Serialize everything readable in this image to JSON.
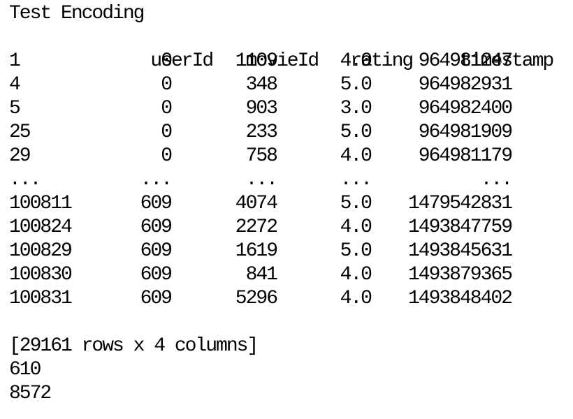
{
  "title": "Test Encoding",
  "table": {
    "columns": [
      "userId",
      "movieId",
      "rating",
      "timestamp"
    ],
    "rows": [
      {
        "index": "1",
        "userId": "0",
        "movieId": "1109",
        "rating": "4.0",
        "timestamp": "964981247"
      },
      {
        "index": "4",
        "userId": "0",
        "movieId": "348",
        "rating": "5.0",
        "timestamp": "964982931"
      },
      {
        "index": "5",
        "userId": "0",
        "movieId": "903",
        "rating": "3.0",
        "timestamp": "964982400"
      },
      {
        "index": "25",
        "userId": "0",
        "movieId": "233",
        "rating": "5.0",
        "timestamp": "964981909"
      },
      {
        "index": "29",
        "userId": "0",
        "movieId": "758",
        "rating": "4.0",
        "timestamp": "964981179"
      },
      {
        "index": "...",
        "userId": "...",
        "movieId": "...",
        "rating": "...",
        "timestamp": "..."
      },
      {
        "index": "100811",
        "userId": "609",
        "movieId": "4074",
        "rating": "5.0",
        "timestamp": "1479542831"
      },
      {
        "index": "100824",
        "userId": "609",
        "movieId": "2272",
        "rating": "4.0",
        "timestamp": "1493847759"
      },
      {
        "index": "100829",
        "userId": "609",
        "movieId": "1619",
        "rating": "5.0",
        "timestamp": "1493845631"
      },
      {
        "index": "100830",
        "userId": "609",
        "movieId": "841",
        "rating": "4.0",
        "timestamp": "1493879365"
      },
      {
        "index": "100831",
        "userId": "609",
        "movieId": "5296",
        "rating": "4.0",
        "timestamp": "1493848402"
      }
    ]
  },
  "summary": "[29161 rows x 4 columns]",
  "outputs": [
    "610",
    "8572"
  ]
}
